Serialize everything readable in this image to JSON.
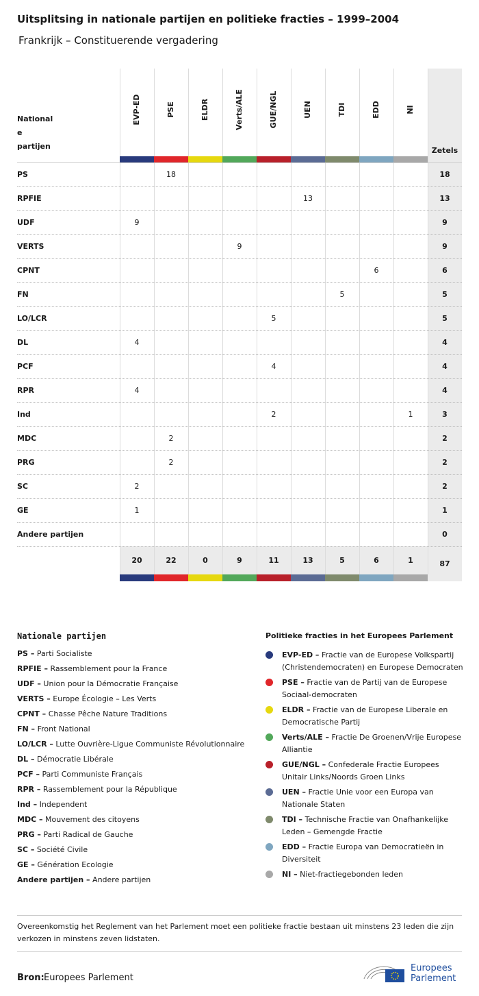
{
  "header": {
    "title": "Uitsplitsing in nationale partijen en politieke fracties – 1999–2004",
    "subtitle": "Frankrijk – Constituerende vergadering"
  },
  "table": {
    "row_header": [
      "National",
      "e",
      "partijen"
    ],
    "total_header": "Zetels",
    "columns": [
      {
        "name": "EVP-ED",
        "color": "#283a7c"
      },
      {
        "name": "PSE",
        "color": "#e0262a"
      },
      {
        "name": "ELDR",
        "color": "#e6d80f"
      },
      {
        "name": "Verts/ALE",
        "color": "#52a85a"
      },
      {
        "name": "GUE/NGL",
        "color": "#b8202a"
      },
      {
        "name": "UEN",
        "color": "#5b6b94"
      },
      {
        "name": "TDI",
        "color": "#7f8a6c"
      },
      {
        "name": "EDD",
        "color": "#7fa6c0"
      },
      {
        "name": "NI",
        "color": "#a8a8a8"
      }
    ],
    "rows": [
      {
        "party": "PS",
        "cells": [
          null,
          18,
          null,
          null,
          null,
          null,
          null,
          null,
          null
        ],
        "total": 18
      },
      {
        "party": "RPFIE",
        "cells": [
          null,
          null,
          null,
          null,
          null,
          13,
          null,
          null,
          null
        ],
        "total": 13
      },
      {
        "party": "UDF",
        "cells": [
          9,
          null,
          null,
          null,
          null,
          null,
          null,
          null,
          null
        ],
        "total": 9
      },
      {
        "party": "VERTS",
        "cells": [
          null,
          null,
          null,
          9,
          null,
          null,
          null,
          null,
          null
        ],
        "total": 9
      },
      {
        "party": "CPNT",
        "cells": [
          null,
          null,
          null,
          null,
          null,
          null,
          null,
          6,
          null
        ],
        "total": 6
      },
      {
        "party": "FN",
        "cells": [
          null,
          null,
          null,
          null,
          null,
          null,
          5,
          null,
          null
        ],
        "total": 5
      },
      {
        "party": "LO/LCR",
        "cells": [
          null,
          null,
          null,
          null,
          5,
          null,
          null,
          null,
          null
        ],
        "total": 5
      },
      {
        "party": "DL",
        "cells": [
          4,
          null,
          null,
          null,
          null,
          null,
          null,
          null,
          null
        ],
        "total": 4
      },
      {
        "party": "PCF",
        "cells": [
          null,
          null,
          null,
          null,
          4,
          null,
          null,
          null,
          null
        ],
        "total": 4
      },
      {
        "party": "RPR",
        "cells": [
          4,
          null,
          null,
          null,
          null,
          null,
          null,
          null,
          null
        ],
        "total": 4
      },
      {
        "party": "Ind",
        "cells": [
          null,
          null,
          null,
          null,
          2,
          null,
          null,
          null,
          1
        ],
        "total": 3
      },
      {
        "party": "MDC",
        "cells": [
          null,
          2,
          null,
          null,
          null,
          null,
          null,
          null,
          null
        ],
        "total": 2
      },
      {
        "party": "PRG",
        "cells": [
          null,
          2,
          null,
          null,
          null,
          null,
          null,
          null,
          null
        ],
        "total": 2
      },
      {
        "party": "SC",
        "cells": [
          2,
          null,
          null,
          null,
          null,
          null,
          null,
          null,
          null
        ],
        "total": 2
      },
      {
        "party": "GE",
        "cells": [
          1,
          null,
          null,
          null,
          null,
          null,
          null,
          null,
          null
        ],
        "total": 1
      },
      {
        "party": "Andere partijen",
        "cells": [
          null,
          null,
          null,
          null,
          null,
          null,
          null,
          null,
          null
        ],
        "total": 0
      }
    ],
    "totals": [
      20,
      22,
      0,
      9,
      11,
      13,
      5,
      6,
      1
    ],
    "grand_total": 87
  },
  "parties_legend": {
    "title": "Nationale partijen",
    "items": [
      {
        "term": "PS –",
        "desc": "Parti Socialiste"
      },
      {
        "term": "RPFIE –",
        "desc": "Rassemblement pour la France"
      },
      {
        "term": "UDF –",
        "desc": "Union pour la Démocratie Française"
      },
      {
        "term": "VERTS –",
        "desc": "Europe Écologie – Les Verts"
      },
      {
        "term": "CPNT –",
        "desc": "Chasse Pêche Nature Traditions"
      },
      {
        "term": "FN –",
        "desc": "Front National"
      },
      {
        "term": "LO/LCR –",
        "desc": "Lutte Ouvrière-Ligue Communiste Révolutionnaire"
      },
      {
        "term": "DL –",
        "desc": "Démocratie Libérale"
      },
      {
        "term": "PCF –",
        "desc": "Parti Communiste Français"
      },
      {
        "term": "RPR –",
        "desc": "Rassemblement pour la République"
      },
      {
        "term": "Ind –",
        "desc": "Independent"
      },
      {
        "term": "MDC –",
        "desc": "Mouvement des citoyens"
      },
      {
        "term": "PRG –",
        "desc": "Parti Radical de Gauche"
      },
      {
        "term": "SC –",
        "desc": "Société Civile"
      },
      {
        "term": "GE –",
        "desc": "Génération Ecologie"
      },
      {
        "term": "Andere partijen –",
        "desc": "Andere partijen"
      }
    ]
  },
  "groups_legend": {
    "title": "Politieke fracties in het Europees Parlement",
    "items": [
      {
        "term": "EVP-ED –",
        "desc": "Fractie van de Europese Volkspartij (Christendemocraten) en Europese Democraten"
      },
      {
        "term": "PSE –",
        "desc": "Fractie van de Partij van de Europese Sociaal-democraten"
      },
      {
        "term": "ELDR –",
        "desc": "Fractie van de Europese Liberale en Democratische Partij"
      },
      {
        "term": "Verts/ALE –",
        "desc": "Fractie De Groenen/Vrije Europese Alliantie"
      },
      {
        "term": "GUE/NGL –",
        "desc": "Confederale Fractie Europees Unitair Links/Noords Groen Links"
      },
      {
        "term": "UEN –",
        "desc": "Fractie Unie voor een Europa van Nationale Staten"
      },
      {
        "term": "TDI –",
        "desc": "Technische Fractie van Onafhankelijke Leden – Gemengde Fractie"
      },
      {
        "term": "EDD –",
        "desc": "Fractie Europa van Democratieën in Diversiteit"
      },
      {
        "term": "NI –",
        "desc": "Niet-fractiegebonden leden"
      }
    ]
  },
  "footer": {
    "note": "Overeenkomstig het Reglement van het Parlement moet een politieke fractie bestaan uit minstens 23 leden die zijn verkozen in minstens zeven lidstaten.",
    "source_label": "Bron:",
    "source": "Europees Parlement",
    "logo_text": [
      "Europees",
      "Parlement"
    ]
  }
}
